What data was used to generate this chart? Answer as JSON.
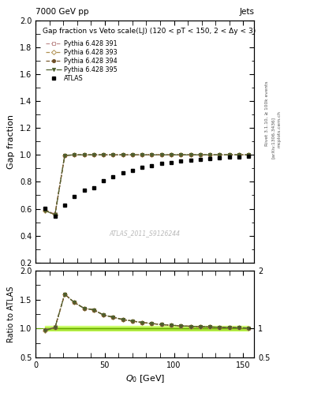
{
  "title": "Gap fraction vs Veto scale(LJ) (120 < pT < 150, 2 < Δy < 3)",
  "header_left": "7000 GeV pp",
  "header_right": "Jets",
  "xlabel": "Q_{0} [GeV]",
  "ylabel_main": "Gap fraction",
  "ylabel_ratio": "Ratio to ATLAS",
  "watermark": "ATLAS_2011_S9126244",
  "rivet_label": "Rivet 3.1.10, ≥ 100k events",
  "arxiv_label": "[arXiv:1306.3436]",
  "mcplots_label": "mcplots.cern.ch",
  "ylim_main": [
    0.2,
    2.0
  ],
  "ylim_ratio": [
    0.5,
    2.0
  ],
  "xlim": [
    0,
    158
  ],
  "q0_atlas": [
    7,
    14,
    21,
    28,
    35,
    42,
    49,
    56,
    63,
    70,
    77,
    84,
    91,
    98,
    105,
    112,
    119,
    126,
    133,
    140,
    147,
    154
  ],
  "gap_atlas": [
    0.605,
    0.545,
    0.625,
    0.69,
    0.74,
    0.755,
    0.81,
    0.835,
    0.865,
    0.885,
    0.905,
    0.92,
    0.935,
    0.945,
    0.955,
    0.962,
    0.968,
    0.973,
    0.978,
    0.982,
    0.986,
    0.99
  ],
  "q0_mc": [
    7,
    14,
    21,
    28,
    35,
    42,
    49,
    56,
    63,
    70,
    77,
    84,
    91,
    98,
    105,
    112,
    119,
    126,
    133,
    140,
    147,
    154
  ],
  "gap_391": [
    0.59,
    0.56,
    0.997,
    1.0,
    1.0,
    1.0,
    1.0,
    1.0,
    1.0,
    1.0,
    1.0,
    1.0,
    1.0,
    1.0,
    1.0,
    1.0,
    1.0,
    1.0,
    1.0,
    1.0,
    1.0,
    1.0
  ],
  "gap_393": [
    0.585,
    0.555,
    0.997,
    1.0,
    1.0,
    1.0,
    1.0,
    1.0,
    1.0,
    1.0,
    1.0,
    1.0,
    1.0,
    1.0,
    1.0,
    1.0,
    1.0,
    1.0,
    1.0,
    1.0,
    1.0,
    1.0
  ],
  "gap_394": [
    0.59,
    0.555,
    0.995,
    1.0,
    1.0,
    1.0,
    1.0,
    1.0,
    1.0,
    1.0,
    1.0,
    1.0,
    1.0,
    1.0,
    1.0,
    1.0,
    1.0,
    1.0,
    1.0,
    1.0,
    1.0,
    1.0
  ],
  "gap_395": [
    0.585,
    0.555,
    0.996,
    1.0,
    1.0,
    1.0,
    1.0,
    1.0,
    1.0,
    1.0,
    1.0,
    1.0,
    1.0,
    1.0,
    1.0,
    1.0,
    1.0,
    1.0,
    1.0,
    1.0,
    1.0,
    1.0
  ],
  "color_391": "#c8908080",
  "color_393": "#b8986040",
  "color_394": "#6b4c2a",
  "color_395": "#4a5e28",
  "color_atlas": "#000000",
  "bg_color": "#ffffff",
  "line_color_391": "#c09090",
  "line_color_393": "#b09050",
  "line_color_394": "#7a5c30",
  "line_color_395": "#506030"
}
